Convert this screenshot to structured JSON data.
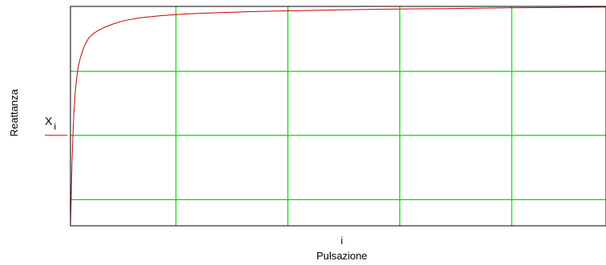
{
  "chart_data": {
    "type": "line",
    "title": "",
    "xlabel": "Pulsazione",
    "x_index_label": "i",
    "ylabel": "Reattanza",
    "legend": {
      "placement": "left",
      "entries": [
        {
          "name": "X",
          "subscript": "i",
          "color": "#cc0000"
        }
      ]
    },
    "grid": true,
    "grid_color": "#00dd00",
    "frame_color": "#000000",
    "series_color": "#cc0000",
    "xlim": [
      0,
      1
    ],
    "ylim": [
      0,
      1
    ],
    "x_gridlines": [
      0.197,
      0.406,
      0.615,
      0.824
    ],
    "y_gridlines": [
      0.119,
      0.412,
      0.704
    ],
    "series": [
      {
        "name": "X",
        "x": [
          0,
          0.003,
          0.006,
          0.009,
          0.012,
          0.015,
          0.019,
          0.023,
          0.028,
          0.034,
          0.042,
          0.052,
          0.064,
          0.08,
          0.1,
          0.13,
          0.17,
          0.22,
          0.28,
          0.35,
          0.43,
          0.52,
          0.61,
          0.7,
          0.8,
          0.9,
          1.0
        ],
        "y": [
          0,
          0.3,
          0.5,
          0.61,
          0.68,
          0.73,
          0.77,
          0.8,
          0.83,
          0.855,
          0.875,
          0.89,
          0.905,
          0.92,
          0.935,
          0.948,
          0.958,
          0.966,
          0.972,
          0.977,
          0.981,
          0.985,
          0.988,
          0.99,
          0.993,
          0.995,
          0.997
        ]
      }
    ]
  }
}
